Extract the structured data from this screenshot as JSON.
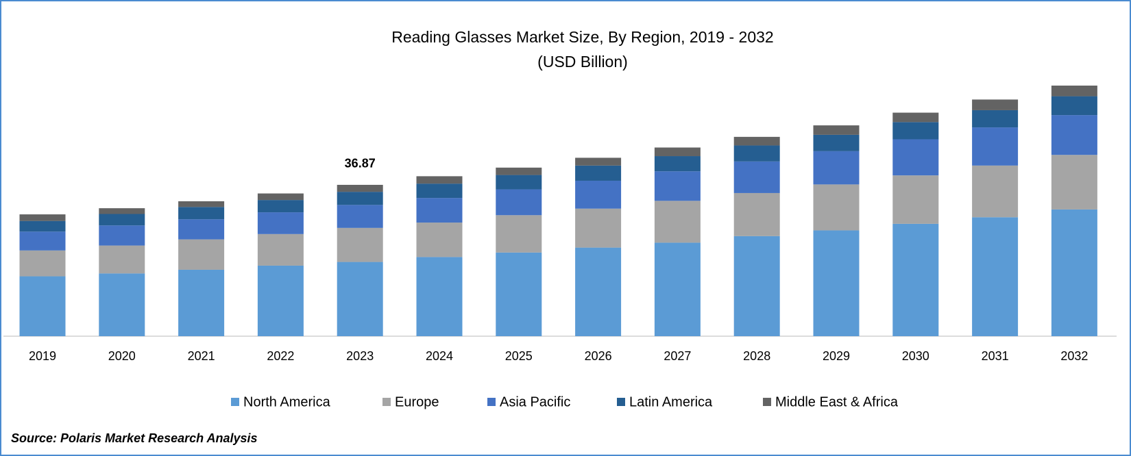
{
  "chart_data": {
    "type": "stacked_bar",
    "title": "Reading Glasses Market Size, By Region, 2019 - 2032",
    "subtitle": "(USD Billion)",
    "categories": [
      "2019",
      "2020",
      "2021",
      "2022",
      "2023",
      "2024",
      "2025",
      "2026",
      "2027",
      "2028",
      "2029",
      "2030",
      "2031",
      "2032"
    ],
    "series": [
      {
        "name": "North America",
        "color": "#5b9bd5",
        "values": [
          14.6,
          15.3,
          16.2,
          17.2,
          18.1,
          19.3,
          20.4,
          21.6,
          22.8,
          24.4,
          25.8,
          27.4,
          29.0,
          30.9
        ]
      },
      {
        "name": "Europe",
        "color": "#a5a5a5",
        "values": [
          6.3,
          6.8,
          7.4,
          7.7,
          8.3,
          8.4,
          9.1,
          9.5,
          10.2,
          10.5,
          11.2,
          11.8,
          12.6,
          13.3
        ]
      },
      {
        "name": "Asia Pacific",
        "color": "#4472c4",
        "values": [
          4.6,
          4.9,
          4.9,
          5.3,
          5.6,
          6.0,
          6.3,
          6.8,
          7.2,
          7.7,
          8.1,
          8.8,
          9.3,
          9.7
        ]
      },
      {
        "name": "Latin America",
        "color": "#255e91",
        "values": [
          2.6,
          2.8,
          3.0,
          3.0,
          3.2,
          3.5,
          3.5,
          3.7,
          3.7,
          3.9,
          4.0,
          4.2,
          4.2,
          4.6
        ]
      },
      {
        "name": "Middle East & Africa",
        "color": "#636363",
        "values": [
          1.6,
          1.4,
          1.4,
          1.6,
          1.7,
          1.8,
          1.8,
          1.9,
          2.1,
          2.1,
          2.3,
          2.3,
          2.6,
          2.6
        ]
      }
    ],
    "annotations": [
      {
        "category": "2023",
        "text": "36.87"
      }
    ],
    "source": "Source: Polaris Market Research Analysis"
  }
}
